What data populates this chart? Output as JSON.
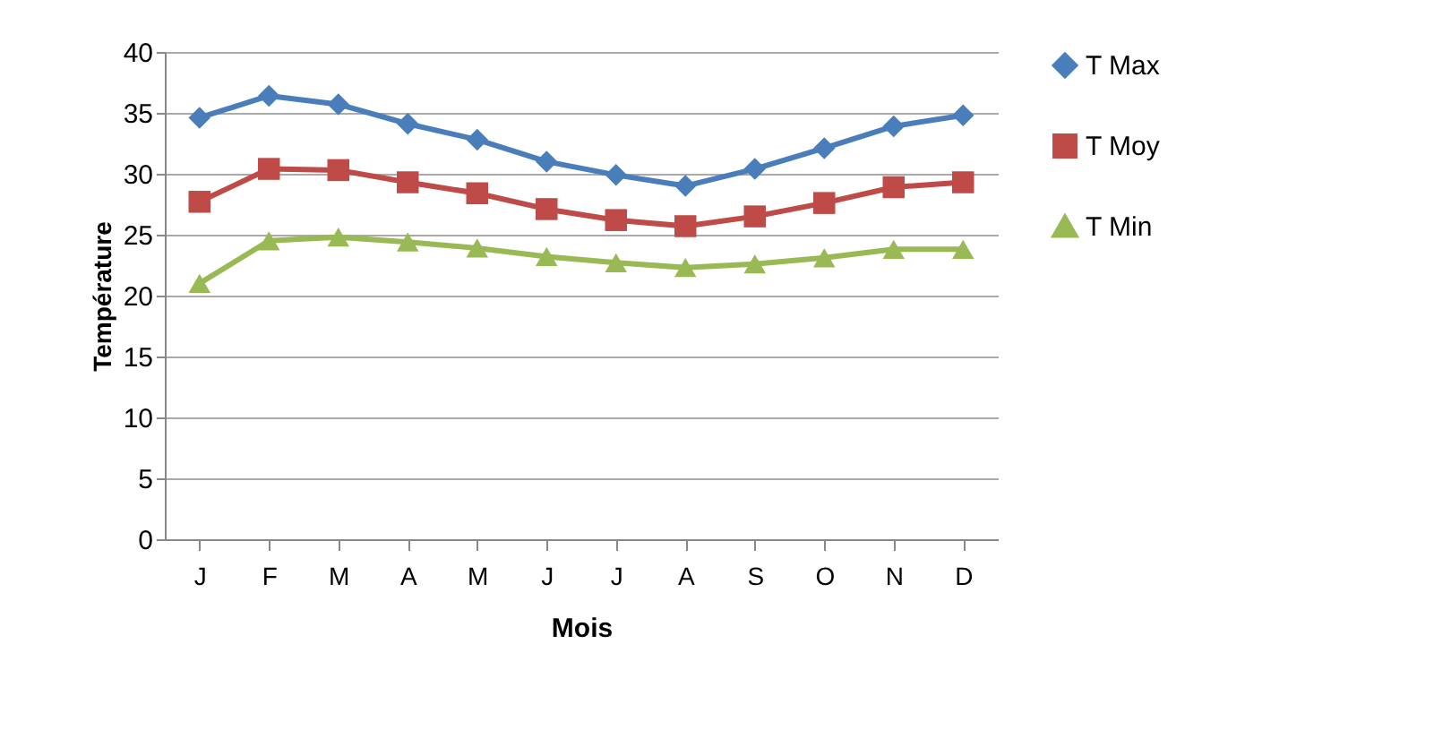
{
  "chart_data": {
    "type": "line",
    "xlabel": "Mois",
    "ylabel": "Température",
    "categories": [
      "J",
      "F",
      "M",
      "A",
      "M",
      "J",
      "J",
      "A",
      "S",
      "O",
      "N",
      "D"
    ],
    "series": [
      {
        "name": "T Max",
        "color": "#4a7ebb",
        "marker": "diamond",
        "values": [
          34.6,
          36.4,
          35.7,
          34.1,
          32.8,
          31.0,
          29.9,
          29.0,
          30.4,
          32.1,
          33.9,
          34.8
        ]
      },
      {
        "name": "T Moy",
        "color": "#be4b48",
        "marker": "square",
        "values": [
          27.7,
          30.4,
          30.3,
          29.3,
          28.4,
          27.1,
          26.2,
          25.7,
          26.5,
          27.6,
          28.9,
          29.3
        ]
      },
      {
        "name": "T Min",
        "color": "#98b954",
        "marker": "triangle",
        "values": [
          21.0,
          24.5,
          24.8,
          24.4,
          23.9,
          23.2,
          22.7,
          22.3,
          22.6,
          23.1,
          23.8,
          23.8
        ]
      }
    ],
    "ylim": [
      0,
      40
    ],
    "yticks": [
      0,
      5,
      10,
      15,
      20,
      25,
      30,
      35,
      40
    ],
    "grid": "y",
    "legend": "right",
    "line_style": "solid"
  }
}
